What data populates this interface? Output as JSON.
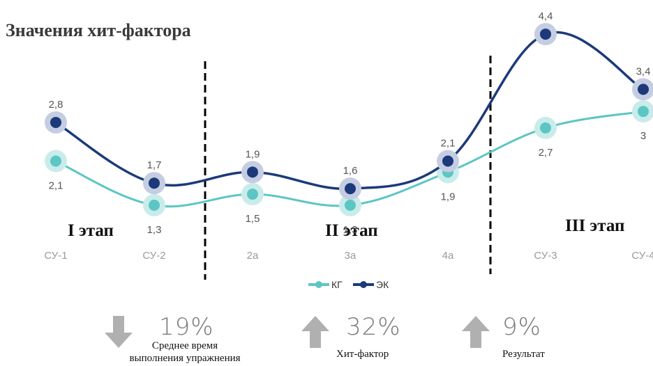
{
  "title": "Значения хит-фактора",
  "stages": [
    "I этап",
    "II этап",
    "III этап"
  ],
  "chart_data": {
    "type": "line",
    "categories": [
      "СУ-1",
      "СУ-2",
      "2a",
      "3a",
      "4a",
      "СУ-3",
      "СУ-4"
    ],
    "series": [
      {
        "name": "КГ",
        "values": [
          2.1,
          1.3,
          1.5,
          1.3,
          1.9,
          2.7,
          3.0
        ],
        "labels": [
          "2,1",
          "1,3",
          "1,5",
          "1,3",
          "1,9",
          "2,7",
          "3"
        ],
        "color": "#5cc6c4"
      },
      {
        "name": "ЭК",
        "values": [
          2.8,
          1.7,
          1.9,
          1.6,
          2.1,
          4.4,
          3.4
        ],
        "labels": [
          "2,8",
          "1,7",
          "1,9",
          "1,6",
          "2,1",
          "4,4",
          "3,4"
        ],
        "color": "#1c3a7a"
      }
    ],
    "grid": false,
    "legend": "bottom-center"
  },
  "stats": [
    {
      "direction": "down",
      "value": "19%",
      "label_line1": "Среднее время",
      "label_line2": "выполнения упражнения"
    },
    {
      "direction": "up",
      "value": "32%",
      "label_line1": "Хит-фактор",
      "label_line2": ""
    },
    {
      "direction": "up",
      "value": "9%",
      "label_line1": "Результат",
      "label_line2": ""
    }
  ],
  "colors": {
    "kg": "#5cc6c4",
    "ek": "#1c3a7a",
    "arrow": "#b0b0b0"
  }
}
